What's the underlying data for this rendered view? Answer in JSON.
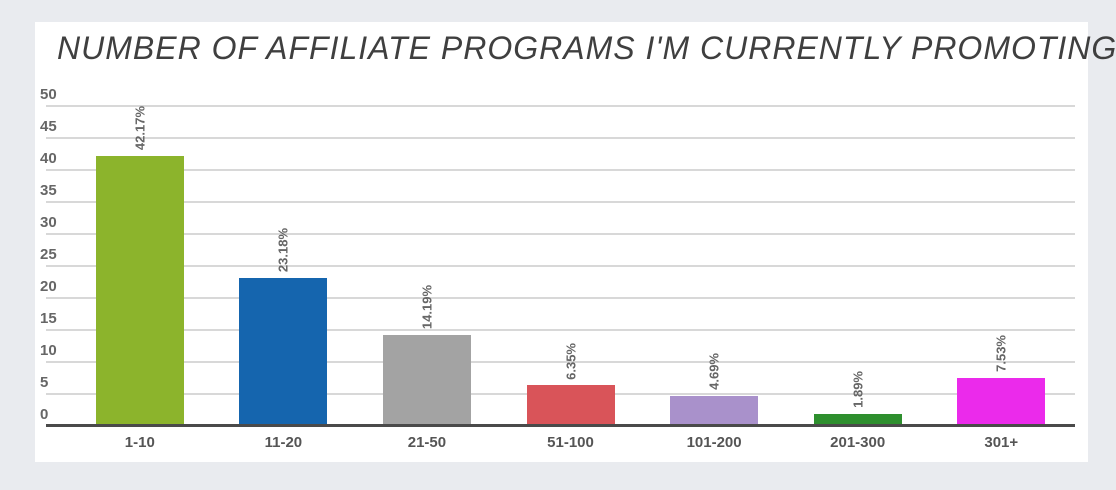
{
  "page": {
    "background_color": "#e9ebef",
    "card_color": "#ffffff"
  },
  "chart_data": {
    "type": "bar",
    "title": "NUMBER OF AFFILIATE PROGRAMS I'M CURRENTLY PROMOTING:",
    "categories": [
      "1-10",
      "11-20",
      "21-50",
      "51-100",
      "101-200",
      "201-300",
      "301+"
    ],
    "values": [
      42.17,
      23.18,
      14.19,
      6.35,
      4.69,
      1.89,
      7.53
    ],
    "value_labels": [
      "42.17%",
      "23.18%",
      "14.19%",
      "6.35%",
      "4.69%",
      "1.89%",
      "7.53%"
    ],
    "bar_colors": [
      "#8cb42c",
      "#1565ae",
      "#a3a3a3",
      "#d95459",
      "#a991cb",
      "#2e8f2e",
      "#eb2aeb"
    ],
    "xlabel": "",
    "ylabel": "",
    "ylim": [
      0,
      50
    ],
    "yticks": [
      0,
      5,
      10,
      15,
      20,
      25,
      30,
      35,
      40,
      45,
      50
    ],
    "grid": true,
    "legend": false,
    "value_label_rotation": -90,
    "colors": {
      "title_text": "#3f3f3f",
      "gridline": "#d8d8d8",
      "baseline": "#4a4a4a",
      "tick_text": "#666666",
      "category_text": "#555555"
    }
  }
}
